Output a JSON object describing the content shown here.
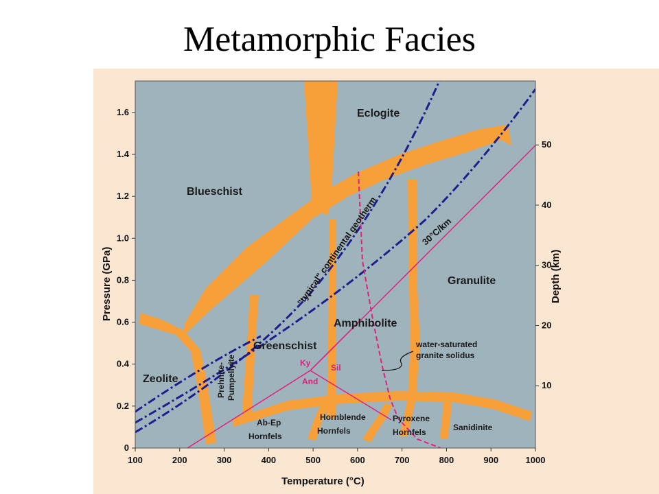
{
  "slide": {
    "title": "Metamorphic Facies"
  },
  "chart_data": {
    "type": "diagram",
    "xlabel": "Temperature (°C)",
    "ylabel": "Pressure (GPa)",
    "y2label": "Depth (km)",
    "xlim": [
      100,
      1000
    ],
    "ylim": [
      0,
      1.75
    ],
    "x_ticks": [
      "100",
      "200",
      "300",
      "400",
      "500",
      "600",
      "700",
      "800",
      "900",
      "1000"
    ],
    "y_ticks": [
      "0",
      "0.2",
      "0.4",
      "0.6",
      "0.8",
      "1.0",
      "1.2",
      "1.4",
      "1.6"
    ],
    "y2_ticks": [
      "10",
      "20",
      "30",
      "40",
      "50"
    ],
    "facies": [
      "Eclogite",
      "Blueschist",
      "Granulite",
      "Amphibolite",
      "Greenschist",
      "Zeolite",
      "Prehnite-",
      "Pumpellyite",
      "Ab-Ep",
      "Hornfels",
      "Hornblende",
      "Hornfels",
      "Pyroxene",
      "Hornfels",
      "Sanidinite"
    ],
    "minerals": [
      "Ky",
      "Sil",
      "And"
    ],
    "geotherm_labels": [
      "\"typical\" continental geotherm",
      "30°C/km"
    ],
    "annotation": [
      "water-saturated",
      "granite solidus"
    ],
    "colors": {
      "plot_bg": "#9fb3bd",
      "outer_bg": "#fbe6d2",
      "boundary": "#f7a03a",
      "geotherm": "#1f1d8c",
      "alsilicate": "#e0207e"
    }
  }
}
